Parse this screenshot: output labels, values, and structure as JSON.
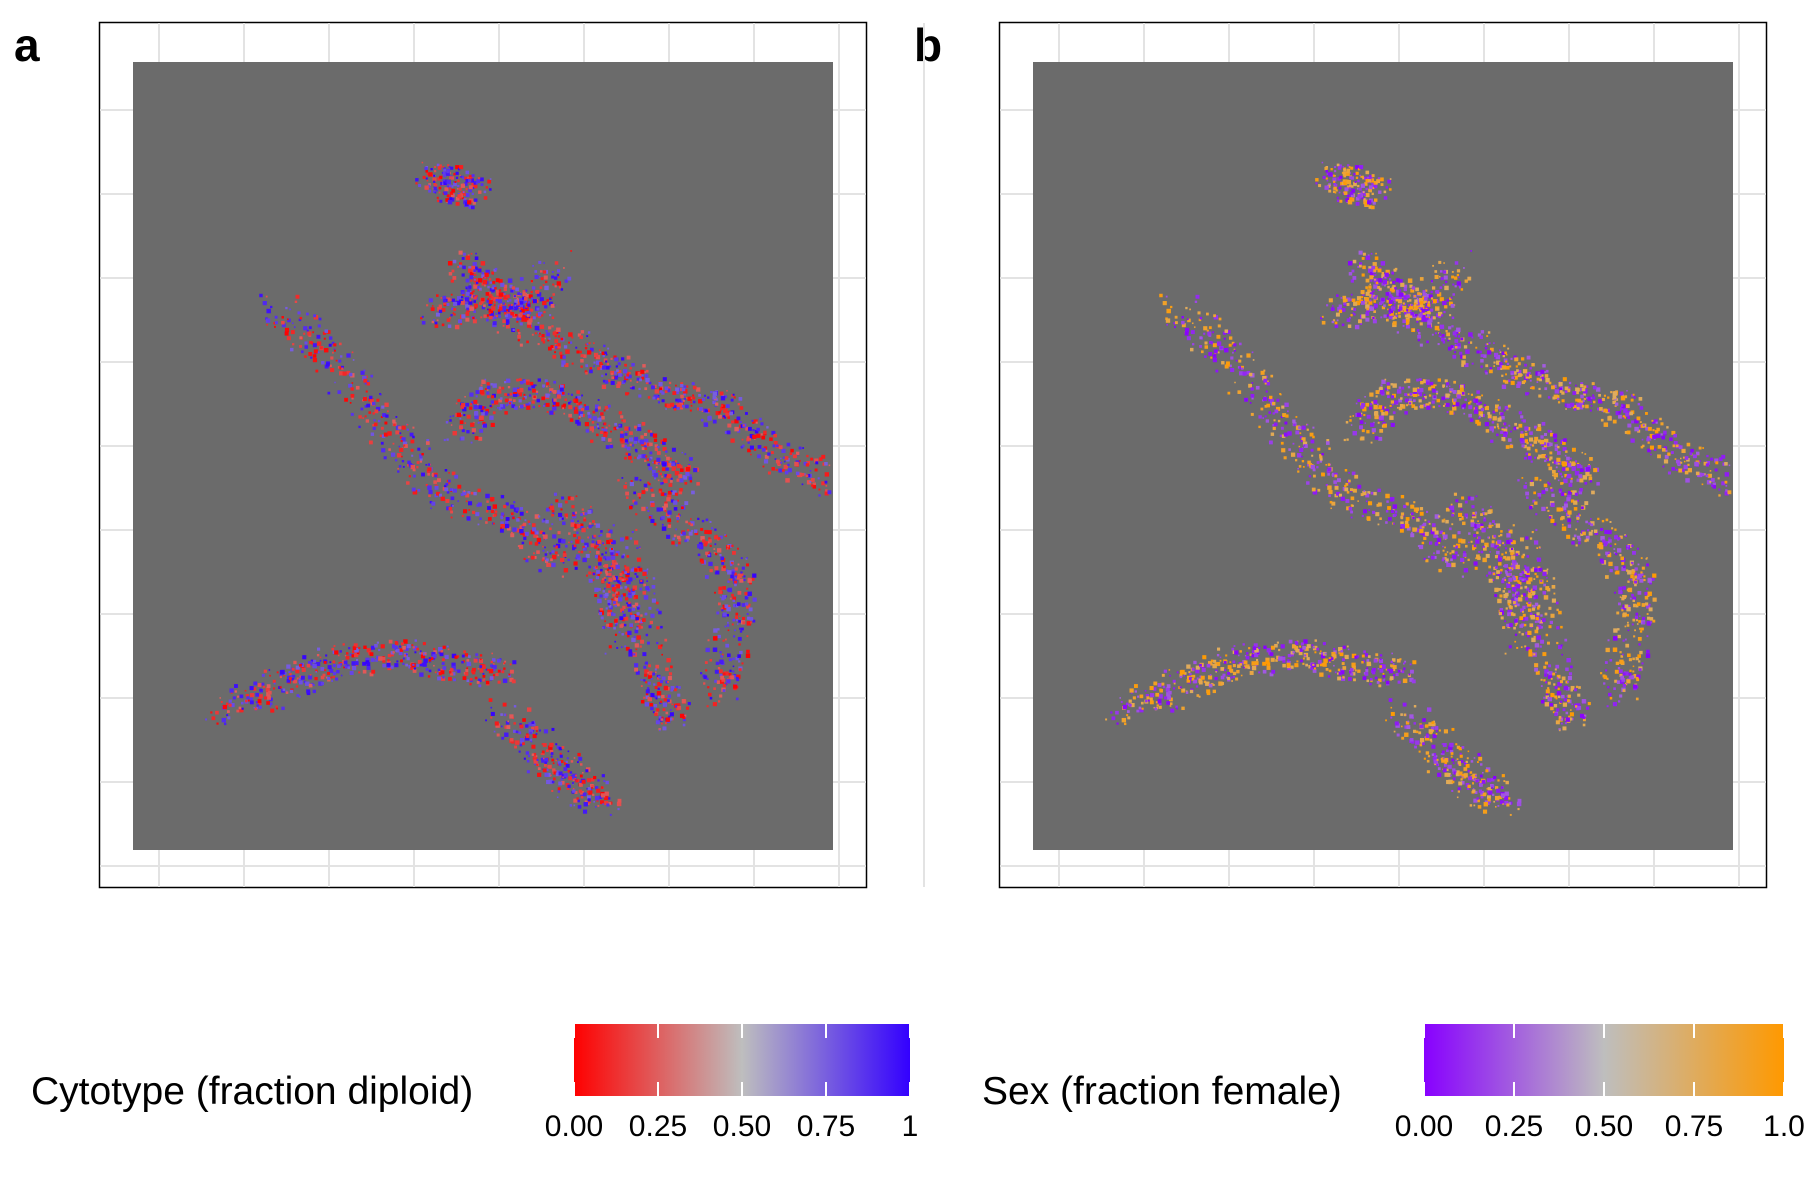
{
  "chart_data": [
    {
      "type": "heatmap",
      "panel_label": "a",
      "title": "",
      "xlabel": "",
      "ylabel": "",
      "legend_title": "Cytotype (fraction diploid)",
      "legend_ticks": [
        "0.00",
        "0.25",
        "0.50",
        "0.75",
        "1"
      ],
      "scale_range": [
        0,
        1
      ],
      "colors": {
        "low": "#ff0000",
        "mid": "#bebebe",
        "high": "#3300ff",
        "background": "#6b6b6b"
      },
      "legend_placement": "bottom",
      "grid": true
    },
    {
      "type": "heatmap",
      "panel_label": "b",
      "title": "",
      "xlabel": "",
      "ylabel": "",
      "legend_title": "Sex (fraction female)",
      "legend_ticks": [
        "0.00",
        "0.25",
        "0.50",
        "0.75",
        "1.0"
      ],
      "scale_range": [
        0,
        1
      ],
      "colors": {
        "low": "#8800ff",
        "mid": "#bebebe",
        "high": "#ff9900",
        "background": "#6b6b6b"
      },
      "legend_placement": "bottom",
      "grid": true
    }
  ]
}
